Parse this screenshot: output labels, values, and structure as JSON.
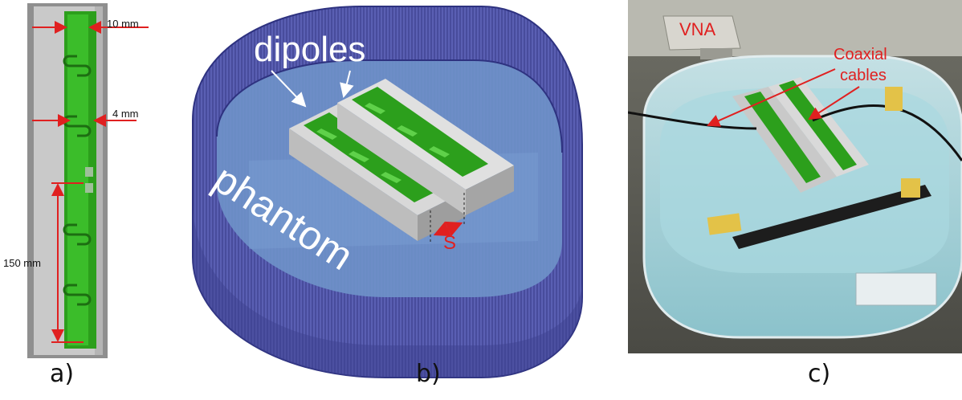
{
  "panel_a": {
    "caption": "a)",
    "dimensions": [
      {
        "label": "10 mm"
      },
      {
        "label": "4 mm"
      },
      {
        "label": "150 mm"
      }
    ]
  },
  "panel_b": {
    "caption": "b)",
    "dipoles_label": "dipoles",
    "phantom_label": "phantom",
    "spacing_label": "S"
  },
  "panel_c": {
    "caption": "c)",
    "vna_label": "VNA",
    "cables_label_line1": "Coaxial",
    "cables_label_line2": "cables"
  },
  "colors": {
    "pcb_green": "#2c9f1c",
    "trace_green": "#5fd14a",
    "phantom_blue": "#4a4fa0",
    "annotation_red": "#e02020",
    "substrate_gray": "#a8a8a8"
  }
}
